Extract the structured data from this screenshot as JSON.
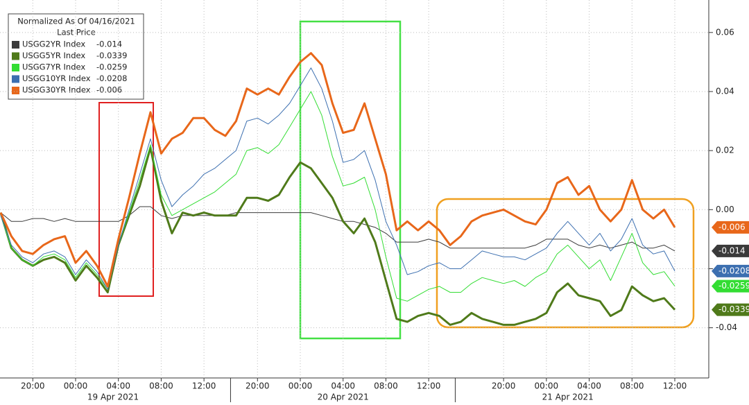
{
  "chart_data": {
    "type": "line",
    "legend_title": "Normalized As Of 04/16/2021",
    "legend_subtitle": "Last Price",
    "categories": [
      null,
      null,
      null,
      "20:00",
      null,
      null,
      null,
      "00:00",
      null,
      null,
      null,
      "04:00",
      null,
      null,
      null,
      "08:00",
      null,
      null,
      null,
      "12:00",
      null,
      null,
      null,
      null,
      "20:00",
      null,
      null,
      null,
      "00:00",
      null,
      null,
      null,
      "04:00",
      null,
      null,
      null,
      "08:00",
      null,
      null,
      null,
      "12:00",
      null,
      null,
      null,
      null,
      null,
      null,
      "20:00",
      null,
      null,
      null,
      "00:00",
      null,
      null,
      null,
      "04:00",
      null,
      null,
      null,
      "08:00",
      null,
      null,
      null,
      "12:00"
    ],
    "days": [
      {
        "label": "19 Apr 2021",
        "first": 0,
        "last": 21
      },
      {
        "label": "20 Apr 2021",
        "first": 22,
        "last": 42
      },
      {
        "label": "21 Apr 2021",
        "first": 43,
        "last": 63
      }
    ],
    "ylim": [
      -0.057,
      0.071
    ],
    "yticks": [
      -0.04,
      -0.02,
      {
        "value": 0,
        "label": "0.00"
      },
      0.02,
      0.04,
      0.06
    ],
    "grid": true,
    "series": [
      {
        "name": "USGG2YR Index",
        "last": -0.014,
        "color": "#3a3a3a",
        "width": 1,
        "values": [
          -0.001,
          -0.004,
          -0.004,
          -0.003,
          -0.003,
          -0.004,
          -0.003,
          -0.004,
          -0.004,
          -0.004,
          -0.004,
          -0.004,
          -0.002,
          0.001,
          0.001,
          -0.002,
          -0.003,
          -0.002,
          -0.002,
          -0.002,
          -0.002,
          -0.002,
          -0.001,
          -0.001,
          -0.001,
          -0.001,
          -0.001,
          -0.001,
          -0.001,
          -0.001,
          -0.002,
          -0.003,
          -0.004,
          -0.004,
          -0.005,
          -0.006,
          -0.008,
          -0.011,
          -0.011,
          -0.011,
          -0.01,
          -0.011,
          -0.013,
          -0.013,
          -0.013,
          -0.013,
          -0.013,
          -0.013,
          -0.013,
          -0.013,
          -0.012,
          -0.01,
          -0.01,
          -0.01,
          -0.012,
          -0.013,
          -0.012,
          -0.013,
          -0.012,
          -0.011,
          -0.013,
          -0.013,
          -0.012,
          -0.014
        ]
      },
      {
        "name": "USGG5YR Index",
        "last": -0.0339,
        "color": "#4f7a1a",
        "width": 3,
        "values": [
          -0.001,
          -0.013,
          -0.017,
          -0.019,
          -0.017,
          -0.016,
          -0.018,
          -0.024,
          -0.019,
          -0.023,
          -0.028,
          -0.012,
          -0.002,
          0.008,
          0.021,
          0.003,
          -0.008,
          -0.001,
          -0.002,
          -0.001,
          -0.002,
          -0.002,
          -0.002,
          0.004,
          0.004,
          0.003,
          0.005,
          0.011,
          0.016,
          0.014,
          0.009,
          0.004,
          -0.004,
          -0.008,
          -0.003,
          -0.011,
          -0.024,
          -0.037,
          -0.038,
          -0.036,
          -0.035,
          -0.036,
          -0.039,
          -0.038,
          -0.035,
          -0.037,
          -0.038,
          -0.039,
          -0.039,
          -0.038,
          -0.037,
          -0.035,
          -0.028,
          -0.025,
          -0.029,
          -0.03,
          -0.031,
          -0.036,
          -0.034,
          -0.026,
          -0.029,
          -0.031,
          -0.03,
          -0.0339
        ]
      },
      {
        "name": "USGG7YR Index",
        "last": -0.0259,
        "color": "#33dd33",
        "width": 1,
        "values": [
          -0.002,
          -0.013,
          -0.017,
          -0.019,
          -0.016,
          -0.015,
          -0.017,
          -0.023,
          -0.018,
          -0.022,
          -0.027,
          -0.012,
          -0.001,
          0.01,
          0.022,
          0.005,
          -0.002,
          0.0,
          0.002,
          0.004,
          0.006,
          0.009,
          0.012,
          0.02,
          0.021,
          0.019,
          0.022,
          0.028,
          0.034,
          0.04,
          0.032,
          0.018,
          0.008,
          0.009,
          0.011,
          0.0,
          -0.016,
          -0.03,
          -0.031,
          -0.029,
          -0.027,
          -0.026,
          -0.028,
          -0.028,
          -0.025,
          -0.023,
          -0.024,
          -0.025,
          -0.024,
          -0.026,
          -0.023,
          -0.021,
          -0.015,
          -0.012,
          -0.016,
          -0.02,
          -0.017,
          -0.024,
          -0.016,
          -0.008,
          -0.018,
          -0.022,
          -0.021,
          -0.0259
        ]
      },
      {
        "name": "USGG10YR Index",
        "last": -0.0208,
        "color": "#3c6fb0",
        "width": 1,
        "values": [
          -0.002,
          -0.012,
          -0.016,
          -0.018,
          -0.015,
          -0.014,
          -0.016,
          -0.022,
          -0.017,
          -0.021,
          -0.027,
          -0.012,
          0.0,
          0.012,
          0.024,
          0.01,
          0.001,
          0.005,
          0.008,
          0.012,
          0.014,
          0.017,
          0.02,
          0.03,
          0.031,
          0.029,
          0.032,
          0.036,
          0.042,
          0.048,
          0.041,
          0.03,
          0.016,
          0.017,
          0.02,
          0.01,
          -0.004,
          -0.012,
          -0.022,
          -0.021,
          -0.019,
          -0.018,
          -0.02,
          -0.02,
          -0.017,
          -0.014,
          -0.015,
          -0.016,
          -0.016,
          -0.017,
          -0.015,
          -0.013,
          -0.008,
          -0.004,
          -0.008,
          -0.012,
          -0.008,
          -0.014,
          -0.01,
          -0.003,
          -0.012,
          -0.015,
          -0.014,
          -0.0208
        ]
      },
      {
        "name": "USGG30YR Index",
        "last": -0.006,
        "color": "#e8671a",
        "width": 3,
        "values": [
          -0.001,
          -0.009,
          -0.014,
          -0.015,
          -0.012,
          -0.01,
          -0.009,
          -0.018,
          -0.014,
          -0.019,
          -0.026,
          -0.01,
          0.004,
          0.019,
          0.033,
          0.019,
          0.024,
          0.026,
          0.031,
          0.031,
          0.027,
          0.025,
          0.03,
          0.041,
          0.039,
          0.041,
          0.039,
          0.045,
          0.05,
          0.053,
          0.049,
          0.036,
          0.026,
          0.027,
          0.036,
          0.024,
          0.012,
          -0.007,
          -0.004,
          -0.007,
          -0.004,
          -0.007,
          -0.012,
          -0.009,
          -0.004,
          -0.002,
          -0.001,
          0.0,
          -0.002,
          -0.004,
          -0.005,
          0.0,
          0.009,
          0.011,
          0.005,
          0.008,
          0.0,
          -0.004,
          0.0,
          0.01,
          0.0,
          -0.003,
          0.0,
          -0.006
        ]
      }
    ]
  }
}
